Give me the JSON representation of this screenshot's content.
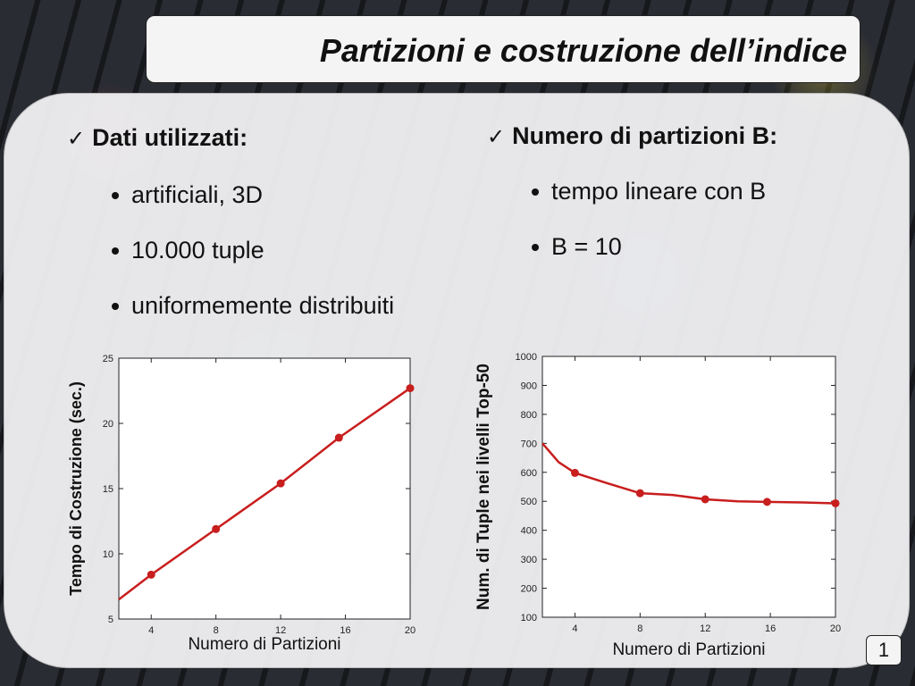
{
  "slide": {
    "title": "Partizioni e costruzione dell’indice",
    "page_number": "1"
  },
  "left_column": {
    "heading": "Dati utilizzati:",
    "bullets": [
      "artificiali, 3D",
      "10.000 tuple",
      "uniformemente distribuiti"
    ]
  },
  "right_column": {
    "heading": "Numero di partizioni B:",
    "bullets": [
      "tempo lineare con B",
      "B = 10"
    ]
  },
  "icons": {
    "check": "check-mark-icon",
    "bullet": "bullet-dot-icon"
  },
  "colors": {
    "series": "#c81e1e",
    "title_box": "#f4f4f4"
  },
  "chart_data": [
    {
      "type": "line",
      "xlabel": "Numero di Partizioni",
      "ylabel": "Tempo di Costruzione (sec.)",
      "xlim": [
        2,
        20
      ],
      "ylim": [
        5,
        25
      ],
      "xticks": [
        "4",
        "8",
        "12",
        "16",
        "20"
      ],
      "yticks": [
        "5",
        "10",
        "15",
        "20",
        "25"
      ],
      "grid": false,
      "x": [
        2,
        4,
        8,
        12,
        15.6,
        20
      ],
      "y": [
        6.5,
        8.4,
        11.9,
        15.4,
        18.9,
        22.7
      ],
      "markers": [
        4,
        8,
        12,
        15.6,
        20
      ]
    },
    {
      "type": "line",
      "xlabel": "Numero di Partizioni",
      "ylabel": "Num. di Tuple nei livelli Top-50",
      "xlim": [
        2,
        20
      ],
      "ylim": [
        100,
        1000
      ],
      "xticks": [
        "4",
        "8",
        "12",
        "16",
        "20"
      ],
      "yticks": [
        "100",
        "200",
        "300",
        "400",
        "500",
        "600",
        "700",
        "800",
        "900",
        "1000"
      ],
      "grid": false,
      "x": [
        2,
        3,
        4,
        6,
        8,
        10,
        12,
        14,
        15.8,
        18,
        20
      ],
      "y": [
        700,
        635,
        598,
        562,
        528,
        522,
        507,
        500,
        498,
        496,
        493
      ],
      "markers": [
        4,
        8,
        12,
        15.8,
        20
      ]
    }
  ]
}
